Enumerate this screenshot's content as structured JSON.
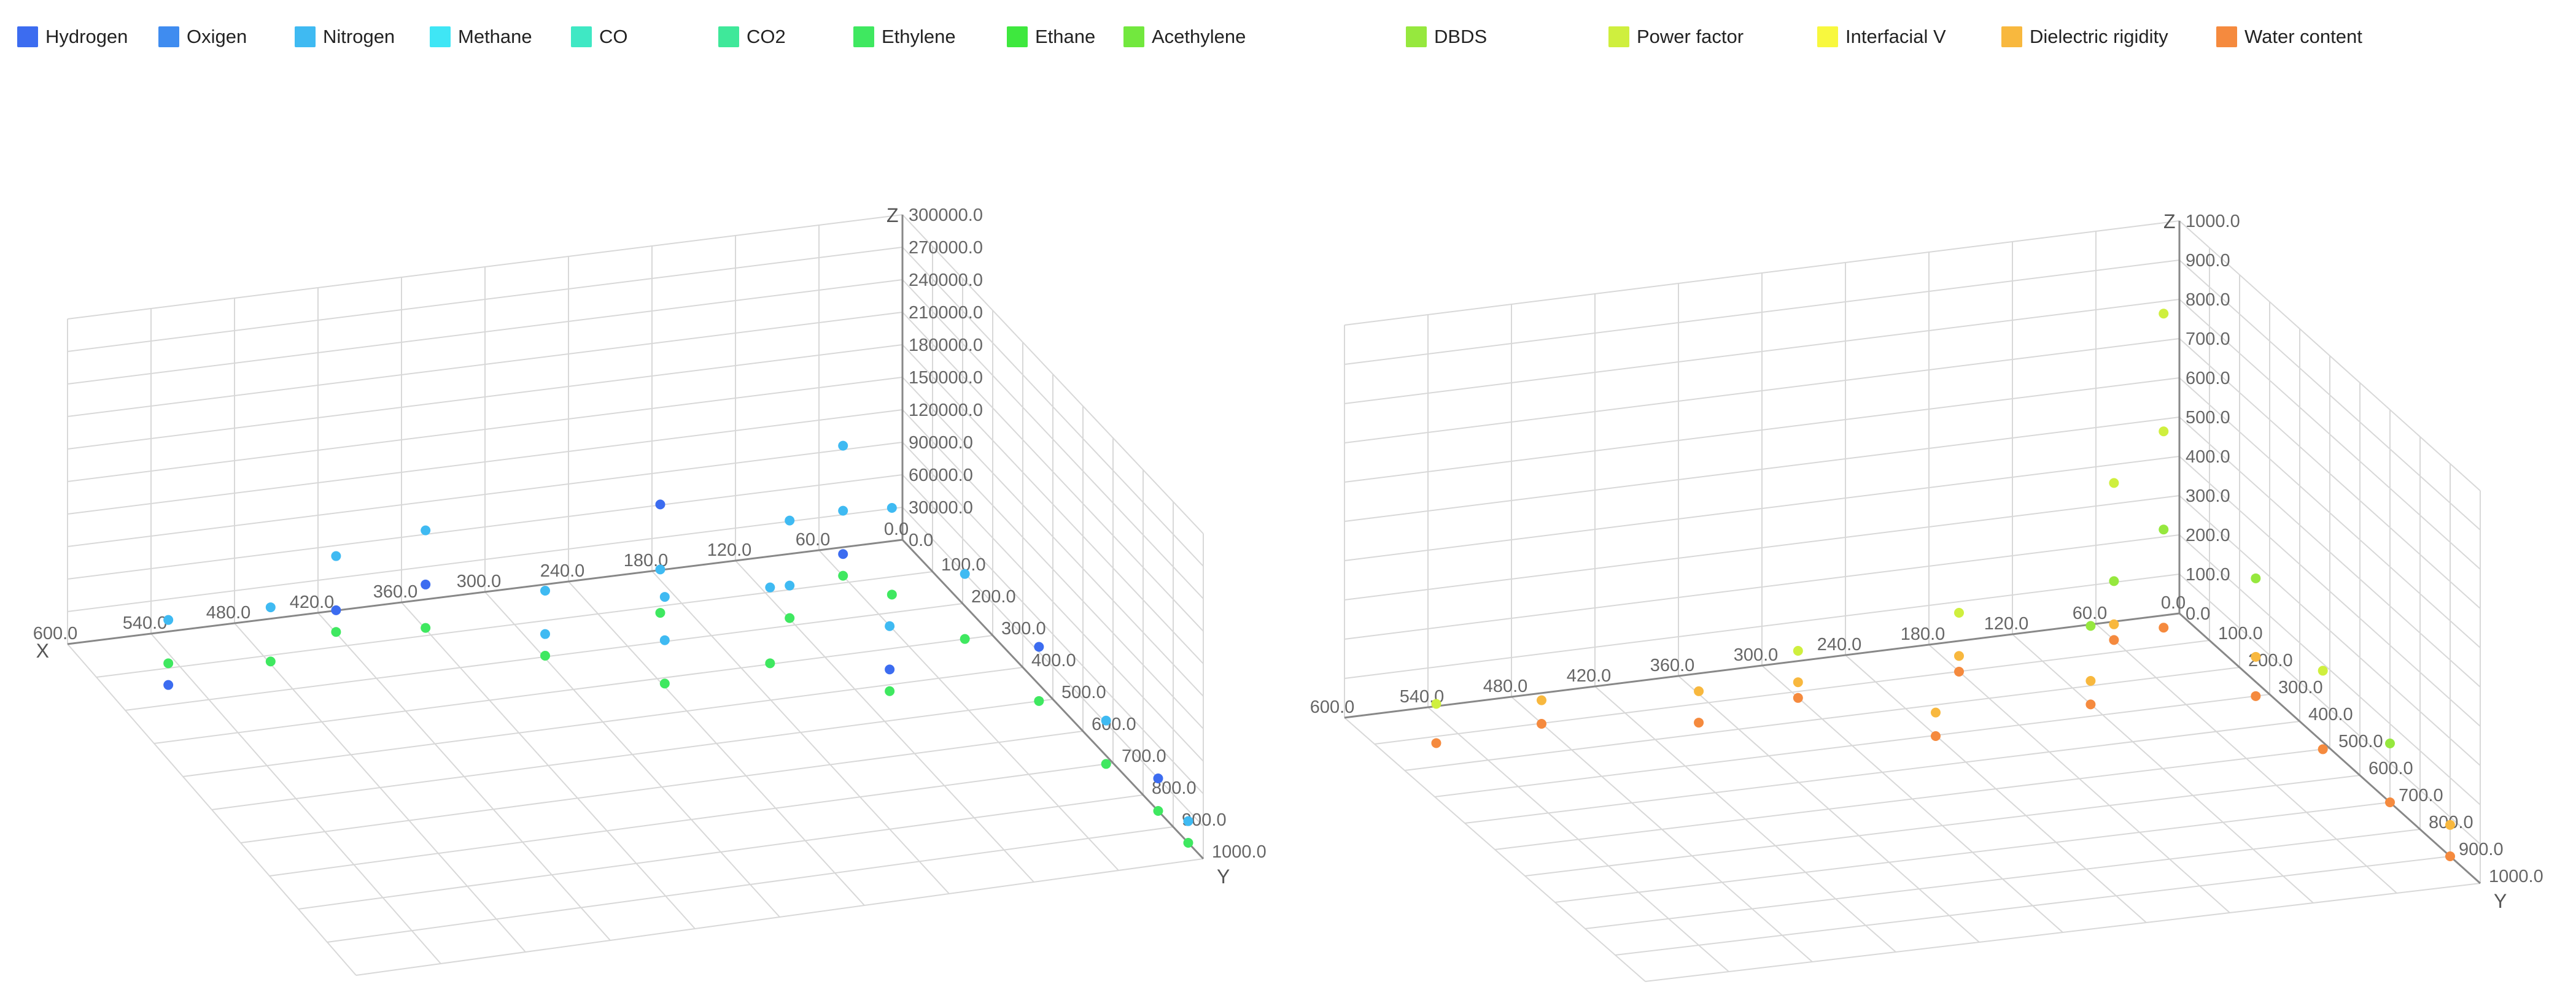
{
  "legend": [
    {
      "label": "Hydrogen",
      "color": "#3c6cf0"
    },
    {
      "label": "Oxigen",
      "color": "#3f8cf0"
    },
    {
      "label": "Nitrogen",
      "color": "#3fbaf2"
    },
    {
      "label": "Methane",
      "color": "#3fe6f5"
    },
    {
      "label": "CO",
      "color": "#3fe8c4"
    },
    {
      "label": "CO2",
      "color": "#3fe89a"
    },
    {
      "label": "Ethylene",
      "color": "#3fe860"
    },
    {
      "label": "Ethane",
      "color": "#3ee83e"
    },
    {
      "label": "Acethylene",
      "color": "#72e83e"
    },
    {
      "label": "DBDS",
      "color": "#96e83e"
    },
    {
      "label": "Power factor",
      "color": "#cfef3e"
    },
    {
      "label": "Interfacial V",
      "color": "#f8f83e"
    },
    {
      "label": "Dielectric rigidity",
      "color": "#f8b83e"
    },
    {
      "label": "Water content",
      "color": "#f58a3e"
    }
  ],
  "chart_data": [
    {
      "type": "scatter",
      "subtype": "3d",
      "axes": {
        "x": "X",
        "y": "Y",
        "z": "Z"
      },
      "x_ticks": [
        "600.0",
        "540.0",
        "480.0",
        "420.0",
        "360.0",
        "300.0",
        "240.0",
        "180.0",
        "120.0",
        "60.0",
        "0.0"
      ],
      "y_ticks": [
        "100.0",
        "200.0",
        "300.0",
        "400.0",
        "500.0",
        "600.0",
        "700.0",
        "800.0",
        "900.0",
        "1000.0"
      ],
      "z_ticks": [
        "0.0",
        "30000.0",
        "60000.0",
        "90000.0",
        "120000.0",
        "150000.0",
        "180000.0",
        "210000.0",
        "240000.0",
        "270000.0",
        "300000.0"
      ],
      "xlim": [
        0,
        600
      ],
      "ylim": [
        0,
        1000
      ],
      "zlim": [
        0,
        300000
      ],
      "grid": true,
      "series_colors": [
        "#3c6cf0",
        "#3fbaf2",
        "#3fe860"
      ],
      "points": [
        [
          560,
          150,
          60000,
          1
        ],
        [
          560,
          150,
          20000,
          2
        ],
        [
          560,
          150,
          0,
          0
        ],
        [
          480,
          120,
          50000,
          1
        ],
        [
          480,
          120,
          0,
          2
        ],
        [
          420,
          60,
          70000,
          1
        ],
        [
          420,
          60,
          20000,
          0
        ],
        [
          420,
          60,
          0,
          2
        ],
        [
          360,
          80,
          90000,
          1
        ],
        [
          360,
          80,
          40000,
          0
        ],
        [
          360,
          80,
          0,
          2
        ],
        [
          300,
          200,
          60000,
          1
        ],
        [
          300,
          200,
          20000,
          1
        ],
        [
          300,
          200,
          0,
          2
        ],
        [
          240,
          320,
          80000,
          1
        ],
        [
          240,
          320,
          40000,
          1
        ],
        [
          240,
          320,
          0,
          2
        ],
        [
          200,
          120,
          100000,
          0
        ],
        [
          200,
          120,
          40000,
          1
        ],
        [
          200,
          120,
          0,
          2
        ],
        [
          160,
          300,
          70000,
          1
        ],
        [
          160,
          300,
          0,
          2
        ],
        [
          120,
          180,
          90000,
          1
        ],
        [
          120,
          180,
          30000,
          1
        ],
        [
          120,
          180,
          0,
          2
        ],
        [
          100,
          420,
          60000,
          1
        ],
        [
          100,
          420,
          20000,
          0
        ],
        [
          100,
          420,
          0,
          2
        ],
        [
          60,
          80,
          120000,
          1
        ],
        [
          60,
          80,
          60000,
          1
        ],
        [
          60,
          80,
          20000,
          0
        ],
        [
          60,
          80,
          0,
          2
        ],
        [
          40,
          150,
          80000,
          1
        ],
        [
          40,
          150,
          0,
          2
        ],
        [
          20,
          300,
          60000,
          1
        ],
        [
          20,
          300,
          0,
          2
        ],
        [
          10,
          500,
          50000,
          0
        ],
        [
          10,
          500,
          0,
          2
        ],
        [
          5,
          700,
          40000,
          1
        ],
        [
          5,
          700,
          0,
          2
        ],
        [
          0,
          850,
          30000,
          0
        ],
        [
          0,
          850,
          0,
          2
        ],
        [
          0,
          950,
          20000,
          1
        ],
        [
          0,
          950,
          0,
          2
        ]
      ]
    },
    {
      "type": "scatter",
      "subtype": "3d",
      "axes": {
        "x": "",
        "y": "Y",
        "z": "Z"
      },
      "x_ticks": [
        "600.0",
        "540.0",
        "480.0",
        "420.0",
        "360.0",
        "300.0",
        "240.0",
        "180.0",
        "120.0",
        "60.0",
        "0.0"
      ],
      "y_ticks": [
        "100.0",
        "200.0",
        "300.0",
        "400.0",
        "500.0",
        "600.0",
        "700.0",
        "800.0",
        "900.0",
        "1000.0"
      ],
      "z_ticks": [
        "0.0",
        "100.0",
        "200.0",
        "300.0",
        "400.0",
        "500.0",
        "600.0",
        "700.0",
        "800.0",
        "900.0",
        "1000.0"
      ],
      "xlim": [
        0,
        600
      ],
      "ylim": [
        0,
        1000
      ],
      "zlim": [
        0,
        1000
      ],
      "grid": true,
      "series_colors": [
        "#96e83e",
        "#cfef3e",
        "#f8b83e",
        "#f58a3e"
      ],
      "points": [
        [
          560,
          120,
          100,
          1
        ],
        [
          560,
          120,
          0,
          3
        ],
        [
          480,
          100,
          60,
          2
        ],
        [
          480,
          100,
          0,
          3
        ],
        [
          380,
          160,
          80,
          2
        ],
        [
          380,
          160,
          0,
          3
        ],
        [
          300,
          120,
          120,
          1
        ],
        [
          300,
          120,
          40,
          2
        ],
        [
          300,
          120,
          0,
          3
        ],
        [
          240,
          300,
          60,
          2
        ],
        [
          240,
          300,
          0,
          3
        ],
        [
          180,
          100,
          150,
          1
        ],
        [
          180,
          100,
          40,
          2
        ],
        [
          180,
          100,
          0,
          3
        ],
        [
          120,
          260,
          200,
          0
        ],
        [
          120,
          260,
          60,
          2
        ],
        [
          120,
          260,
          0,
          3
        ],
        [
          60,
          60,
          400,
          1
        ],
        [
          60,
          60,
          150,
          0
        ],
        [
          60,
          60,
          40,
          2
        ],
        [
          60,
          60,
          0,
          3
        ],
        [
          20,
          40,
          800,
          1
        ],
        [
          20,
          40,
          500,
          1
        ],
        [
          20,
          40,
          250,
          0
        ],
        [
          20,
          40,
          0,
          3
        ],
        [
          10,
          300,
          300,
          0
        ],
        [
          10,
          300,
          100,
          2
        ],
        [
          10,
          300,
          0,
          3
        ],
        [
          5,
          500,
          200,
          1
        ],
        [
          5,
          500,
          0,
          3
        ],
        [
          0,
          700,
          150,
          0
        ],
        [
          0,
          700,
          0,
          3
        ],
        [
          0,
          900,
          80,
          2
        ],
        [
          0,
          900,
          0,
          3
        ]
      ]
    }
  ]
}
